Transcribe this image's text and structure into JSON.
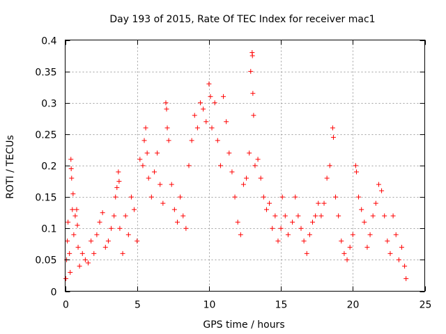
{
  "chart_data": {
    "type": "scatter",
    "title": "Day 193 of 2015, Rate Of TEC Index for receiver mac1",
    "xlabel": "GPS time / hours",
    "ylabel": "ROTI / TECUs",
    "xlim": [
      0,
      25
    ],
    "ylim": [
      0,
      0.4
    ],
    "x_ticks": [
      0,
      5,
      10,
      15,
      20,
      25
    ],
    "y_ticks": [
      0,
      0.05,
      0.1,
      0.15,
      0.2,
      0.25,
      0.3,
      0.35,
      0.4
    ],
    "x_tick_labels": [
      "0",
      "5",
      "10",
      "15",
      "20",
      "25"
    ],
    "y_tick_labels": [
      "0",
      "0.05",
      "0.1",
      "0.15",
      "0.2",
      "0.25",
      "0.3",
      "0.35",
      "0.4"
    ],
    "grid": true,
    "marker": "plus",
    "color": "#ff0000",
    "series": [
      {
        "points": [
          [
            0.05,
            0.02
          ],
          [
            0.1,
            0.05
          ],
          [
            0.15,
            0.08
          ],
          [
            0.2,
            0.11
          ],
          [
            0.3,
            0.06
          ],
          [
            0.35,
            0.03
          ],
          [
            0.4,
            0.21
          ],
          [
            0.42,
            0.195
          ],
          [
            0.45,
            0.18
          ],
          [
            0.5,
            0.13
          ],
          [
            0.55,
            0.155
          ],
          [
            0.6,
            0.09
          ],
          [
            0.7,
            0.12
          ],
          [
            0.8,
            0.13
          ],
          [
            0.85,
            0.105
          ],
          [
            0.9,
            0.07
          ],
          [
            1.0,
            0.04
          ],
          [
            1.2,
            0.06
          ],
          [
            1.4,
            0.05
          ],
          [
            1.6,
            0.045
          ],
          [
            1.8,
            0.08
          ],
          [
            2.0,
            0.06
          ],
          [
            2.2,
            0.09
          ],
          [
            2.4,
            0.11
          ],
          [
            2.6,
            0.125
          ],
          [
            2.8,
            0.07
          ],
          [
            3.0,
            0.08
          ],
          [
            3.2,
            0.1
          ],
          [
            3.4,
            0.12
          ],
          [
            3.5,
            0.15
          ],
          [
            3.6,
            0.165
          ],
          [
            3.7,
            0.19
          ],
          [
            3.75,
            0.175
          ],
          [
            3.8,
            0.1
          ],
          [
            4.0,
            0.06
          ],
          [
            4.2,
            0.12
          ],
          [
            4.4,
            0.09
          ],
          [
            4.6,
            0.15
          ],
          [
            4.8,
            0.13
          ],
          [
            5.0,
            0.08
          ],
          [
            5.2,
            0.21
          ],
          [
            5.4,
            0.2
          ],
          [
            5.5,
            0.24
          ],
          [
            5.6,
            0.26
          ],
          [
            5.7,
            0.22
          ],
          [
            5.8,
            0.18
          ],
          [
            6.0,
            0.15
          ],
          [
            6.2,
            0.19
          ],
          [
            6.4,
            0.22
          ],
          [
            6.6,
            0.17
          ],
          [
            6.8,
            0.14
          ],
          [
            7.0,
            0.3
          ],
          [
            7.05,
            0.29
          ],
          [
            7.1,
            0.26
          ],
          [
            7.2,
            0.24
          ],
          [
            7.4,
            0.17
          ],
          [
            7.6,
            0.13
          ],
          [
            7.8,
            0.11
          ],
          [
            8.0,
            0.15
          ],
          [
            8.2,
            0.12
          ],
          [
            8.4,
            0.1
          ],
          [
            8.6,
            0.2
          ],
          [
            8.8,
            0.24
          ],
          [
            9.0,
            0.28
          ],
          [
            9.2,
            0.26
          ],
          [
            9.4,
            0.3
          ],
          [
            9.6,
            0.29
          ],
          [
            9.8,
            0.27
          ],
          [
            10.0,
            0.33
          ],
          [
            10.1,
            0.31
          ],
          [
            10.2,
            0.26
          ],
          [
            10.4,
            0.3
          ],
          [
            10.6,
            0.24
          ],
          [
            10.8,
            0.2
          ],
          [
            11.0,
            0.31
          ],
          [
            11.2,
            0.27
          ],
          [
            11.4,
            0.22
          ],
          [
            11.6,
            0.19
          ],
          [
            11.8,
            0.15
          ],
          [
            12.0,
            0.11
          ],
          [
            12.2,
            0.09
          ],
          [
            12.4,
            0.17
          ],
          [
            12.6,
            0.18
          ],
          [
            12.8,
            0.22
          ],
          [
            12.9,
            0.35
          ],
          [
            13.0,
            0.38
          ],
          [
            13.02,
            0.375
          ],
          [
            13.05,
            0.315
          ],
          [
            13.1,
            0.28
          ],
          [
            13.2,
            0.2
          ],
          [
            13.4,
            0.21
          ],
          [
            13.6,
            0.18
          ],
          [
            13.8,
            0.15
          ],
          [
            14.0,
            0.13
          ],
          [
            14.2,
            0.14
          ],
          [
            14.4,
            0.1
          ],
          [
            14.6,
            0.12
          ],
          [
            14.8,
            0.08
          ],
          [
            15.0,
            0.1
          ],
          [
            15.1,
            0.15
          ],
          [
            15.3,
            0.12
          ],
          [
            15.5,
            0.09
          ],
          [
            15.8,
            0.11
          ],
          [
            16.0,
            0.15
          ],
          [
            16.2,
            0.12
          ],
          [
            16.4,
            0.1
          ],
          [
            16.6,
            0.08
          ],
          [
            16.8,
            0.06
          ],
          [
            17.0,
            0.09
          ],
          [
            17.2,
            0.11
          ],
          [
            17.4,
            0.12
          ],
          [
            17.6,
            0.14
          ],
          [
            17.8,
            0.12
          ],
          [
            18.0,
            0.14
          ],
          [
            18.2,
            0.18
          ],
          [
            18.4,
            0.2
          ],
          [
            18.6,
            0.26
          ],
          [
            18.65,
            0.245
          ],
          [
            18.8,
            0.15
          ],
          [
            19.0,
            0.12
          ],
          [
            19.2,
            0.08
          ],
          [
            19.4,
            0.06
          ],
          [
            19.6,
            0.05
          ],
          [
            19.8,
            0.07
          ],
          [
            20.0,
            0.09
          ],
          [
            20.2,
            0.2
          ],
          [
            20.25,
            0.19
          ],
          [
            20.4,
            0.15
          ],
          [
            20.6,
            0.13
          ],
          [
            20.8,
            0.11
          ],
          [
            21.0,
            0.07
          ],
          [
            21.2,
            0.09
          ],
          [
            21.4,
            0.12
          ],
          [
            21.6,
            0.14
          ],
          [
            21.8,
            0.17
          ],
          [
            22.0,
            0.16
          ],
          [
            22.2,
            0.12
          ],
          [
            22.4,
            0.08
          ],
          [
            22.6,
            0.06
          ],
          [
            22.8,
            0.12
          ],
          [
            23.0,
            0.09
          ],
          [
            23.2,
            0.05
          ],
          [
            23.4,
            0.07
          ],
          [
            23.6,
            0.04
          ],
          [
            23.7,
            0.02
          ]
        ]
      }
    ]
  }
}
